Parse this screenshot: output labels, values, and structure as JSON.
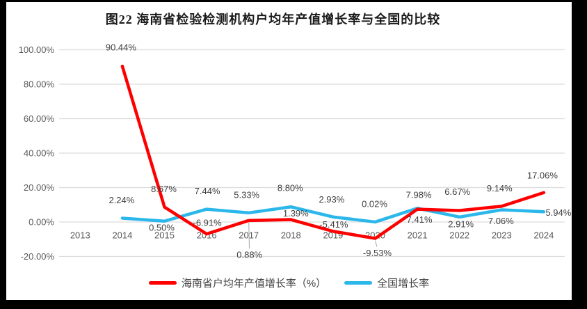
{
  "frame": {
    "background": "#000000",
    "chart_background": "#ffffff"
  },
  "chart_data": {
    "type": "line",
    "title": "图22  海南省检验检测机构户均年产值增长率与全国的比较",
    "xlabel": "",
    "ylabel": "",
    "categories": [
      "2013",
      "2014",
      "2015",
      "2016",
      "2017",
      "2018",
      "2019",
      "2020",
      "2021",
      "2022",
      "2023",
      "2024"
    ],
    "series": [
      {
        "id": "hainan",
        "name": "海南省户均年产值增长率（%）",
        "color": "#fe0000",
        "values": [
          null,
          90.44,
          8.67,
          -6.91,
          0.88,
          1.39,
          -5.41,
          -9.53,
          7.41,
          6.67,
          9.14,
          17.06
        ],
        "data_labels": [
          null,
          "90.44%",
          "8.67%",
          "-6.91%",
          "0.88%",
          "1.39%",
          "-5.41%",
          "-9.53%",
          "7.41%",
          "6.67%",
          "9.14%",
          "17.06%"
        ],
        "label_offsets": [
          null,
          [
            -2,
            -27
          ],
          [
            -1,
            -26
          ],
          [
            1,
            -16
          ],
          [
            1,
            49,
            "leader"
          ],
          [
            7,
            -9
          ],
          [
            1,
            -10
          ],
          [
            3,
            21,
            "leader"
          ],
          [
            3,
            15
          ],
          [
            -3,
            -27
          ],
          [
            -3,
            -26
          ],
          [
            -2,
            -25
          ]
        ]
      },
      {
        "id": "national",
        "name": "全国增长率",
        "color": "#2cb7ea",
        "values": [
          null,
          2.24,
          0.5,
          7.44,
          5.33,
          8.8,
          2.93,
          0.02,
          7.98,
          2.91,
          7.06,
          5.94
        ],
        "data_labels": [
          null,
          "2.24%",
          "0.50%",
          "7.44%",
          "5.33%",
          "8.80%",
          "2.93%",
          "0.02%",
          "7.98%",
          "2.91%",
          "7.06%",
          "5.94%"
        ],
        "label_offsets": [
          null,
          [
            -1,
            -26
          ],
          [
            -4,
            9
          ],
          [
            1,
            -26
          ],
          [
            -3,
            -26
          ],
          [
            -1,
            -27
          ],
          [
            -2,
            -25
          ],
          [
            -1,
            -26
          ],
          [
            2,
            -19
          ],
          [
            2,
            10
          ],
          [
            -1,
            16
          ],
          [
            21,
            1
          ]
        ]
      }
    ],
    "ylim": [
      -20,
      100
    ],
    "yticks": [
      100,
      80,
      60,
      40,
      20,
      0,
      -20
    ],
    "ytick_labels": [
      "100.00%",
      "80.00%",
      "60.00%",
      "40.00%",
      "20.00%",
      "0.00%",
      "-20.00%"
    ],
    "grid": true,
    "legend_position": "bottom"
  },
  "legend": {
    "items": [
      {
        "id": "hainan",
        "label": "海南省户均年产值增长率（%）",
        "color": "#fe0000"
      },
      {
        "id": "national",
        "label": "全国增长率",
        "color": "#2cb7ea"
      }
    ]
  },
  "colors": {
    "grid": "#dcdcdc",
    "axis_text": "#595959",
    "data_label_text": "#404040",
    "leader_line": "#a6a6a6",
    "title_text": "#1a1a1a"
  }
}
